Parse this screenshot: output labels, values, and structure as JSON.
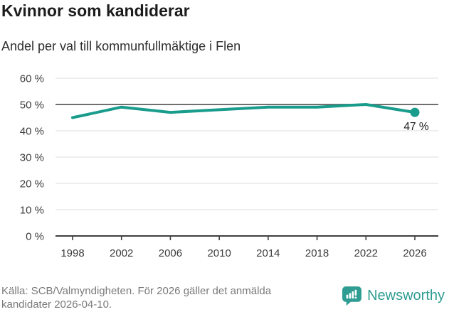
{
  "chart_data": {
    "type": "line",
    "title": "Kvinnor som kandiderar",
    "subtitle": "Andel per val till kommunfullmäktige i Flen",
    "categories": [
      "1998",
      "2002",
      "2006",
      "2010",
      "2014",
      "2018",
      "2022",
      "2026"
    ],
    "values": [
      45,
      49,
      47,
      48,
      49,
      49,
      50,
      47
    ],
    "unit": "%",
    "ylim": [
      0,
      60
    ],
    "ytick_step": 10,
    "ytick_labels": [
      "0 %",
      "10 %",
      "20 %",
      "30 %",
      "40 %",
      "50 %",
      "60 %"
    ],
    "grid": true,
    "legend": "none",
    "reference_line": 50,
    "last_value_label": "47 %",
    "line_color": "#1a9c8c",
    "gridline_color": "#e4e4e4",
    "reference_line_color": "#6f6f6f",
    "axis_color": "#3f3f3f",
    "marker": "circle-on-last-point"
  },
  "footer": {
    "source_text": "Källa: SCB/Valmyndigheten. För 2026 gäller det anmälda kandidater 2026-04-10.",
    "logo_text": "Newsworthy",
    "logo_icon": "newsworthy-speech-bubble-bar-chart-icon",
    "brand_color": "#2f9d92"
  }
}
